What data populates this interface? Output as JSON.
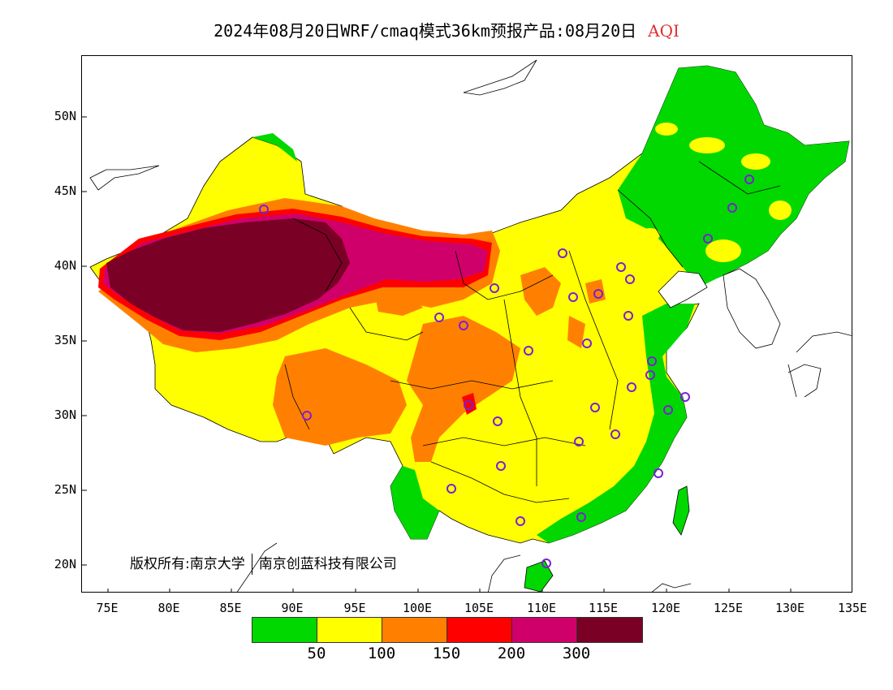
{
  "title": {
    "main": "2024年08月20日WRF/cmaq模式36km预报产品:08月20日",
    "variable": "AQI"
  },
  "axes": {
    "lat_labels": [
      "50N",
      "45N",
      "40N",
      "35N",
      "30N",
      "25N",
      "20N"
    ],
    "lon_labels": [
      "75E",
      "80E",
      "85E",
      "90E",
      "95E",
      "100E",
      "105E",
      "110E",
      "115E",
      "120E",
      "125E",
      "130E",
      "135E"
    ]
  },
  "copyright": {
    "part1": "版权所有:南京大学",
    "part2": "南京创蓝科技有限公司"
  },
  "legend": {
    "colors": [
      "#00d800",
      "#ffff00",
      "#ff8000",
      "#ff0000",
      "#d0006a",
      "#7a0025"
    ],
    "labels": [
      "50",
      "100",
      "150",
      "200",
      "300"
    ]
  },
  "palette": {
    "frame": "#000000",
    "station_marker": "#7a1fd6",
    "title_variable": "#e03030"
  }
}
